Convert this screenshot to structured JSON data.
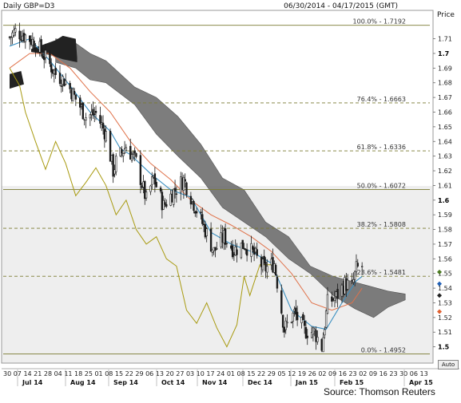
{
  "header": {
    "symbol": "Daily GBP=D3",
    "date_range": "06/30/2014 - 04/17/2015 (GMT)",
    "price_label": "Price"
  },
  "source": "Source: Thomson Reuters",
  "auto_label": "Auto",
  "colors": {
    "candles": "#1a1a1a",
    "fib_line": "#7a7a30",
    "ma_fast": "#3a8fc0",
    "ma_slow": "#e0724a",
    "lagging": "#a89a10",
    "cloud": "#666666",
    "marker_green": "#4a7a20",
    "marker_blue": "#1f5fb5",
    "marker_black": "#222222",
    "marker_orange": "#e06030"
  },
  "chart_data": {
    "type": "candlestick",
    "y_range": [
      1.49,
      1.725
    ],
    "y_ticks": [
      "1.71",
      "1.7",
      "1.69",
      "1.68",
      "1.67",
      "1.66",
      "1.65",
      "1.64",
      "1.63",
      "1.62",
      "1.61",
      "1.6",
      "1.59",
      "1.58",
      "1.57",
      "1.56",
      "1.55",
      "1.54",
      "1.53",
      "1.52",
      "1.51",
      "1.5"
    ],
    "bold_ticks": [
      "1.7",
      "1.6",
      "1.5"
    ],
    "x_day_labels": [
      "30",
      "07",
      "14",
      "21",
      "28",
      "04",
      "11",
      "18",
      "25",
      "01",
      "08",
      "15",
      "22",
      "29",
      "06",
      "13",
      "20",
      "27",
      "03",
      "10",
      "17",
      "24",
      "01",
      "08",
      "15",
      "22",
      "29",
      "05",
      "12",
      "19",
      "26",
      "02",
      "09",
      "16",
      "23",
      "02",
      "09",
      "16",
      "23",
      "30",
      "06",
      "13"
    ],
    "x_month_labels": [
      "Jul 14",
      "Aug 14",
      "Sep 14",
      "Oct 14",
      "Nov 14",
      "Dec 14",
      "Jan 15",
      "Feb 15",
      "Apr 15"
    ],
    "fib_levels": [
      {
        "label": "100.0% - 1.7192",
        "value": 1.7192,
        "style": "solid"
      },
      {
        "label": "76.4% - 1.6663",
        "value": 1.6663,
        "style": "dashed"
      },
      {
        "label": "61.8% - 1.6336",
        "value": 1.6336,
        "style": "dashed"
      },
      {
        "label": "50.0% - 1.6072",
        "value": 1.6072,
        "style": "solid"
      },
      {
        "label": "38.2% - 1.5808",
        "value": 1.5808,
        "style": "dashed"
      },
      {
        "label": "23.6% - 1.5481",
        "value": 1.5481,
        "style": "dashed"
      },
      {
        "label": "0.0% - 1.4952",
        "value": 1.4952,
        "style": "solid"
      }
    ],
    "close_path": [
      [
        "2014-06-30",
        1.711
      ],
      [
        "2014-07-04",
        1.715
      ],
      [
        "2014-07-11",
        1.712
      ],
      [
        "2014-07-18",
        1.707
      ],
      [
        "2014-07-25",
        1.697
      ],
      [
        "2014-08-01",
        1.686
      ],
      [
        "2014-08-08",
        1.681
      ],
      [
        "2014-08-15",
        1.669
      ],
      [
        "2014-08-22",
        1.657
      ],
      [
        "2014-08-29",
        1.659
      ],
      [
        "2014-09-05",
        1.645
      ],
      [
        "2014-09-10",
        1.62
      ],
      [
        "2014-09-12",
        1.626
      ],
      [
        "2014-09-19",
        1.637
      ],
      [
        "2014-09-26",
        1.626
      ],
      [
        "2014-10-03",
        1.6
      ],
      [
        "2014-10-08",
        1.615
      ],
      [
        "2014-10-15",
        1.596
      ],
      [
        "2014-10-22",
        1.606
      ],
      [
        "2014-10-29",
        1.614
      ],
      [
        "2014-11-05",
        1.598
      ],
      [
        "2014-11-12",
        1.582
      ],
      [
        "2014-11-19",
        1.565
      ],
      [
        "2014-11-26",
        1.575
      ],
      [
        "2014-12-03",
        1.566
      ],
      [
        "2014-12-10",
        1.57
      ],
      [
        "2014-12-17",
        1.563
      ],
      [
        "2014-12-24",
        1.553
      ],
      [
        "2014-12-31",
        1.557
      ],
      [
        "2015-01-07",
        1.512
      ],
      [
        "2015-01-14",
        1.523
      ],
      [
        "2015-01-21",
        1.511
      ],
      [
        "2015-01-28",
        1.51
      ],
      [
        "2015-02-02",
        1.5
      ],
      [
        "2015-02-06",
        1.53
      ],
      [
        "2015-02-12",
        1.534
      ],
      [
        "2015-02-18",
        1.543
      ],
      [
        "2015-02-23",
        1.541
      ],
      [
        "2015-02-26",
        1.553
      ],
      [
        "2015-03-02",
        1.555
      ]
    ],
    "ma_fast": [
      [
        "2014-06-30",
        1.705
      ],
      [
        "2014-07-14",
        1.71
      ],
      [
        "2014-07-28",
        1.695
      ],
      [
        "2014-08-11",
        1.678
      ],
      [
        "2014-08-25",
        1.66
      ],
      [
        "2014-09-08",
        1.647
      ],
      [
        "2014-09-15",
        1.635
      ],
      [
        "2014-09-22",
        1.631
      ],
      [
        "2014-10-06",
        1.618
      ],
      [
        "2014-10-20",
        1.607
      ],
      [
        "2014-11-03",
        1.602
      ],
      [
        "2014-11-17",
        1.578
      ],
      [
        "2014-12-01",
        1.57
      ],
      [
        "2014-12-15",
        1.565
      ],
      [
        "2014-12-29",
        1.557
      ],
      [
        "2015-01-12",
        1.525
      ],
      [
        "2015-01-26",
        1.514
      ],
      [
        "2015-02-05",
        1.512
      ],
      [
        "2015-02-16",
        1.53
      ],
      [
        "2015-02-26",
        1.545
      ],
      [
        "2015-03-02",
        1.548
      ]
    ],
    "ma_slow": [
      [
        "2014-06-30",
        1.69
      ],
      [
        "2014-07-14",
        1.7
      ],
      [
        "2014-07-28",
        1.7
      ],
      [
        "2014-08-11",
        1.69
      ],
      [
        "2014-08-25",
        1.674
      ],
      [
        "2014-09-08",
        1.66
      ],
      [
        "2014-09-22",
        1.64
      ],
      [
        "2014-10-06",
        1.625
      ],
      [
        "2014-10-20",
        1.614
      ],
      [
        "2014-11-03",
        1.6
      ],
      [
        "2014-11-17",
        1.59
      ],
      [
        "2014-12-01",
        1.583
      ],
      [
        "2014-12-15",
        1.575
      ],
      [
        "2014-12-29",
        1.565
      ],
      [
        "2015-01-12",
        1.55
      ],
      [
        "2015-01-26",
        1.53
      ],
      [
        "2015-02-09",
        1.525
      ],
      [
        "2015-02-23",
        1.53
      ],
      [
        "2015-03-02",
        1.54
      ]
    ],
    "lagging_span": [
      [
        "2014-06-30",
        1.69
      ],
      [
        "2014-07-07",
        1.678
      ],
      [
        "2014-07-11",
        1.66
      ],
      [
        "2014-07-18",
        1.64
      ],
      [
        "2014-07-25",
        1.621
      ],
      [
        "2014-08-01",
        1.64
      ],
      [
        "2014-08-08",
        1.625
      ],
      [
        "2014-08-15",
        1.603
      ],
      [
        "2014-08-22",
        1.612
      ],
      [
        "2014-08-29",
        1.622
      ],
      [
        "2014-09-05",
        1.61
      ],
      [
        "2014-09-12",
        1.59
      ],
      [
        "2014-09-19",
        1.6
      ],
      [
        "2014-09-26",
        1.58
      ],
      [
        "2014-10-03",
        1.57
      ],
      [
        "2014-10-10",
        1.575
      ],
      [
        "2014-10-17",
        1.56
      ],
      [
        "2014-10-24",
        1.555
      ],
      [
        "2014-10-31",
        1.525
      ],
      [
        "2014-11-07",
        1.516
      ],
      [
        "2014-11-14",
        1.53
      ],
      [
        "2014-11-21",
        1.513
      ],
      [
        "2014-11-28",
        1.5
      ],
      [
        "2014-12-05",
        1.515
      ],
      [
        "2014-12-10",
        1.548
      ],
      [
        "2014-12-14",
        1.535
      ],
      [
        "2014-12-21",
        1.556
      ],
      [
        "2014-12-31",
        1.556
      ]
    ],
    "cloud_upper": [
      [
        "2014-08-01",
        1.71
      ],
      [
        "2014-08-15",
        1.707
      ],
      [
        "2014-08-25",
        1.7
      ],
      [
        "2014-09-05",
        1.695
      ],
      [
        "2014-09-25",
        1.677
      ],
      [
        "2014-10-10",
        1.67
      ],
      [
        "2014-10-25",
        1.657
      ],
      [
        "2014-11-10",
        1.638
      ],
      [
        "2014-11-25",
        1.615
      ],
      [
        "2014-12-10",
        1.607
      ],
      [
        "2014-12-25",
        1.585
      ],
      [
        "2015-01-10",
        1.575
      ],
      [
        "2015-01-25",
        1.555
      ],
      [
        "2015-02-10",
        1.548
      ],
      [
        "2015-03-01",
        1.543
      ],
      [
        "2015-03-20",
        1.538
      ],
      [
        "2015-04-01",
        1.536
      ]
    ],
    "cloud_lower": [
      [
        "2014-08-01",
        1.694
      ],
      [
        "2014-08-15",
        1.69
      ],
      [
        "2014-08-25",
        1.682
      ],
      [
        "2014-09-05",
        1.68
      ],
      [
        "2014-09-25",
        1.665
      ],
      [
        "2014-10-10",
        1.645
      ],
      [
        "2014-10-25",
        1.63
      ],
      [
        "2014-11-10",
        1.615
      ],
      [
        "2014-11-25",
        1.595
      ],
      [
        "2014-12-10",
        1.585
      ],
      [
        "2014-12-25",
        1.575
      ],
      [
        "2015-01-10",
        1.56
      ],
      [
        "2015-01-25",
        1.55
      ],
      [
        "2015-02-10",
        1.535
      ],
      [
        "2015-02-25",
        1.526
      ],
      [
        "2015-03-10",
        1.52
      ],
      [
        "2015-03-20",
        1.527
      ],
      [
        "2015-04-01",
        1.532
      ]
    ]
  }
}
